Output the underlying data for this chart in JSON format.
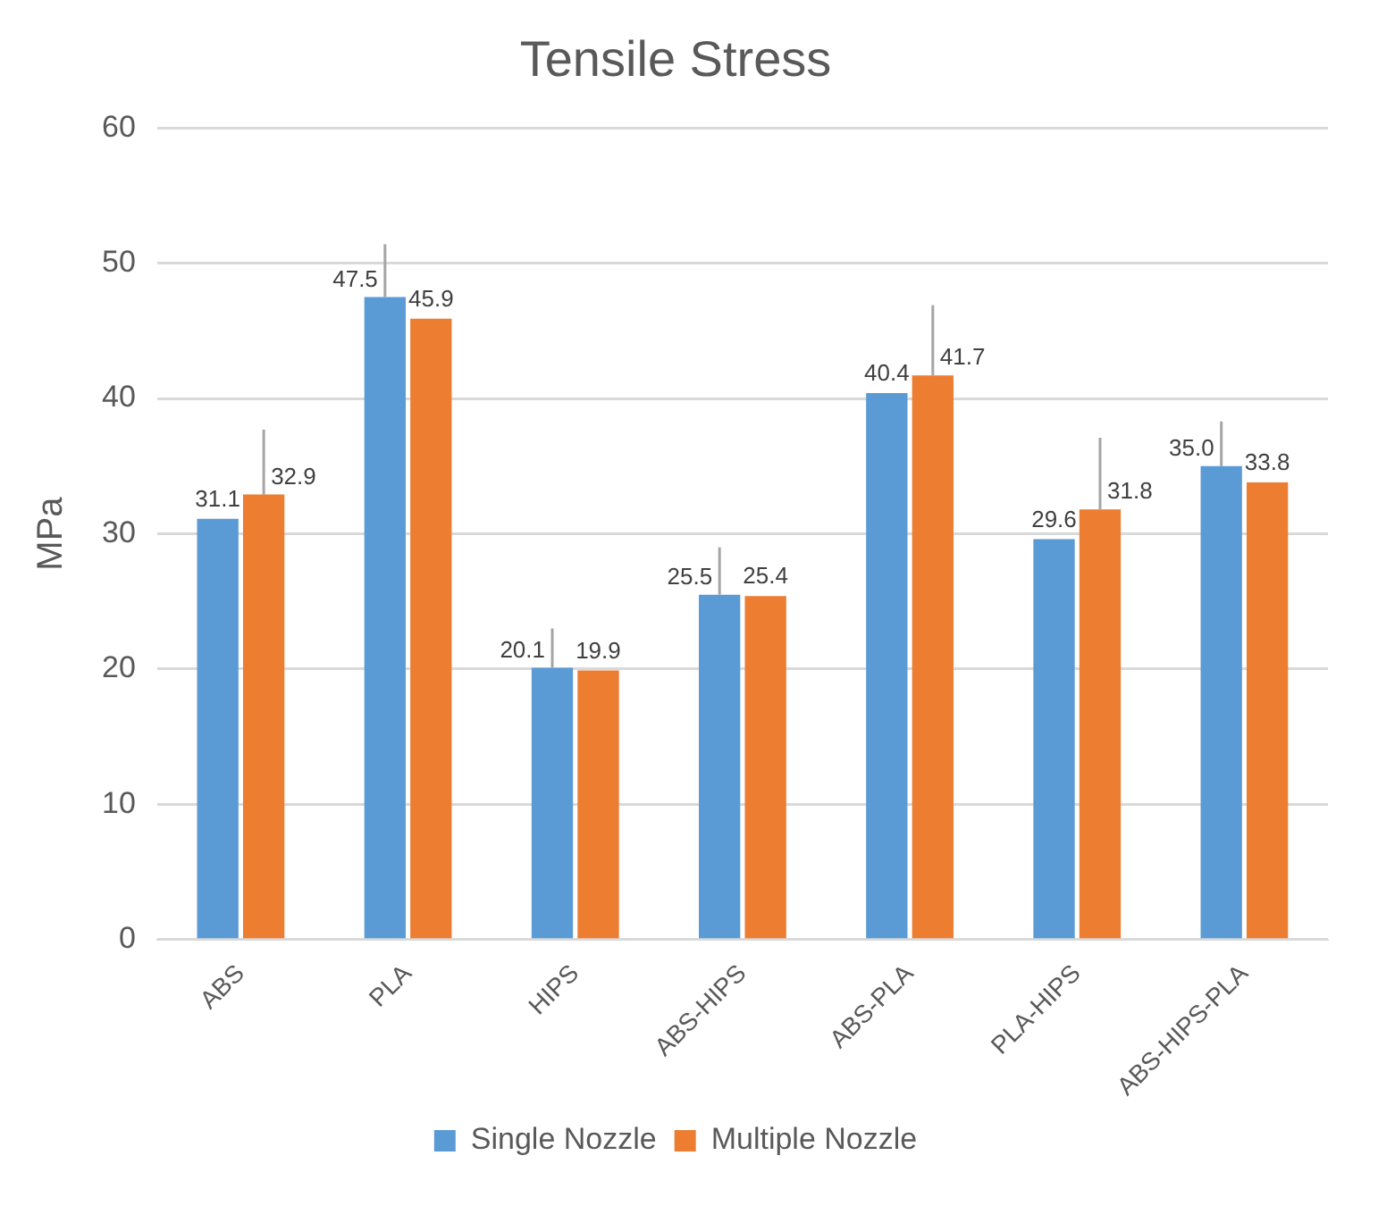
{
  "chart_data": {
    "type": "bar",
    "title": "Tensile Stress",
    "ylabel": "MPa",
    "categories": [
      "ABS",
      "PLA",
      "HIPS",
      "ABS-HIPS",
      "ABS-PLA",
      "PLA-HIPS",
      "ABS-HIPS-PLA"
    ],
    "series": [
      {
        "name": "Single Nozzle",
        "color": "#5b9bd5",
        "values": [
          31.1,
          47.5,
          20.1,
          25.5,
          40.4,
          29.6,
          35.0
        ],
        "value_labels": [
          "31.1",
          "47.5",
          "20.1",
          "25.5",
          "40.4",
          "29.6",
          "35.0"
        ],
        "errors": [
          null,
          [
            47.5,
            51.4
          ],
          [
            20.1,
            23.0
          ],
          [
            25.5,
            29.0
          ],
          null,
          null,
          [
            35.0,
            38.3
          ]
        ]
      },
      {
        "name": "Multiple Nozzle",
        "color": "#ed7d31",
        "values": [
          32.9,
          45.9,
          19.9,
          25.4,
          41.7,
          31.8,
          33.8
        ],
        "value_labels": [
          "32.9",
          "45.9",
          "19.9",
          "25.4",
          "41.7",
          "31.8",
          "33.8"
        ],
        "errors": [
          [
            32.9,
            37.7
          ],
          null,
          null,
          null,
          [
            41.7,
            46.9
          ],
          [
            31.8,
            37.1
          ],
          null
        ]
      }
    ],
    "ylim": [
      0,
      60
    ],
    "yticks": [
      0,
      10,
      20,
      30,
      40,
      50,
      60
    ],
    "grid": "y",
    "legend": "bottom"
  }
}
